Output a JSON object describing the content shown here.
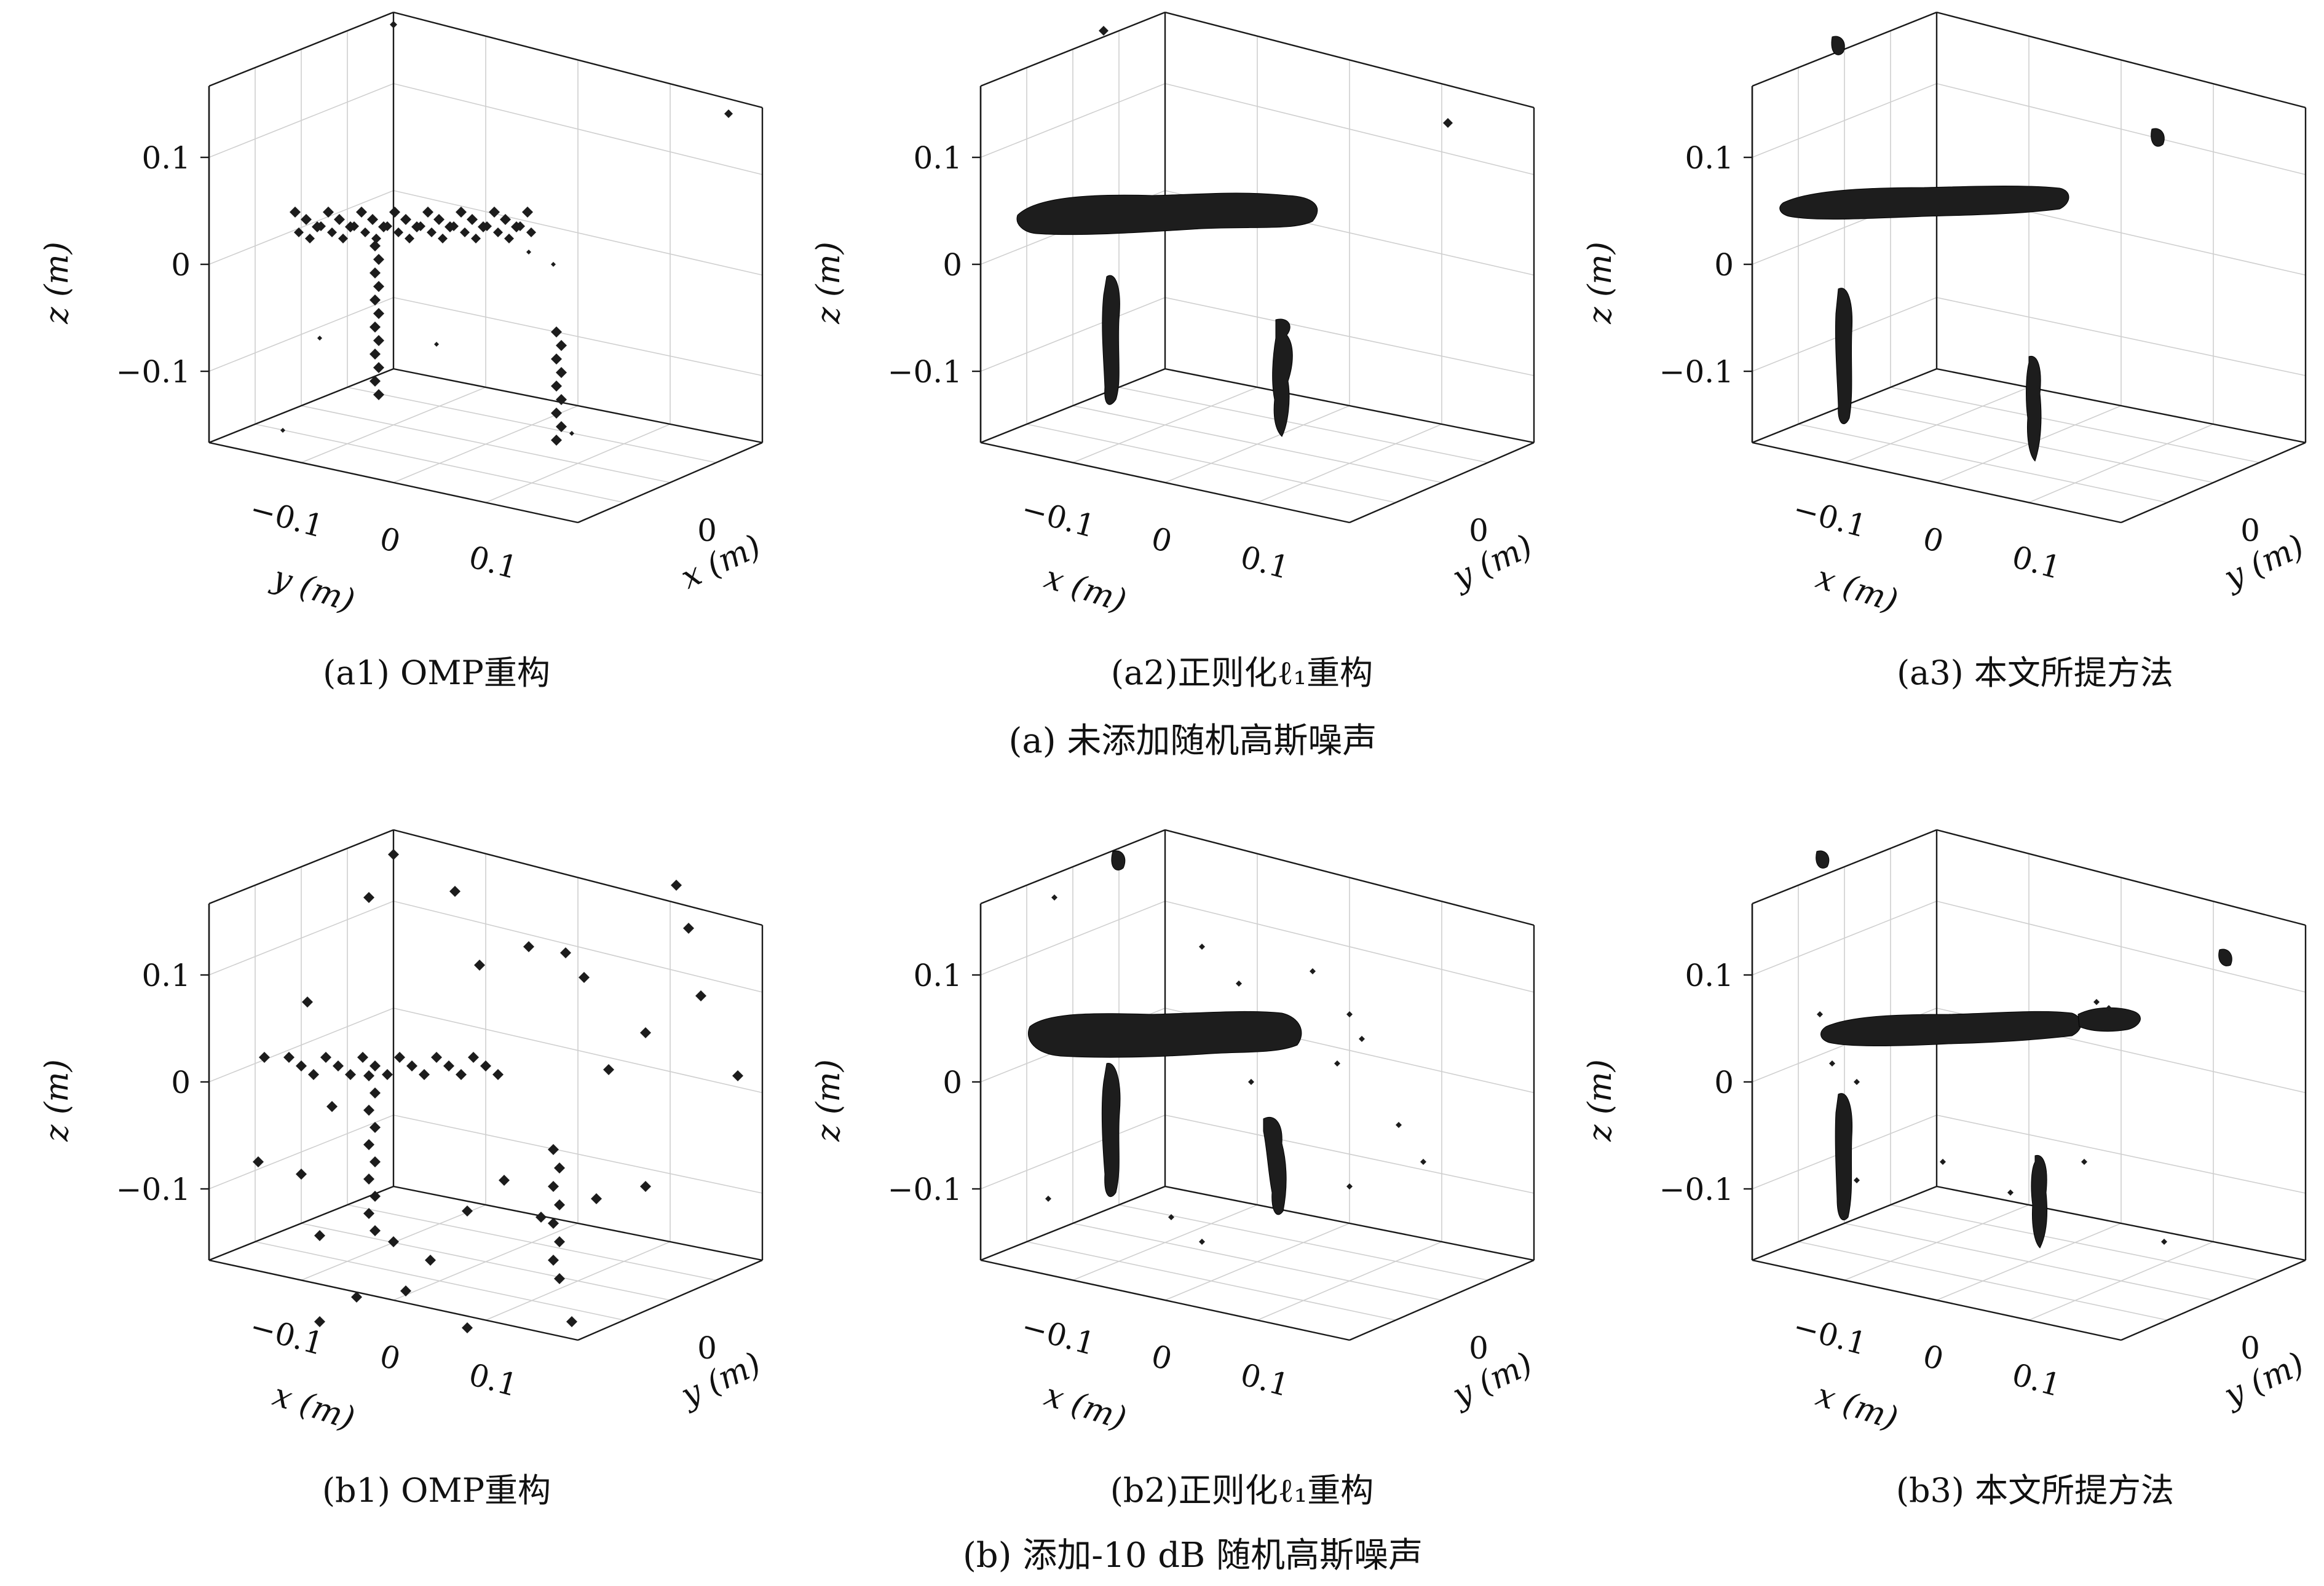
{
  "groups": [
    {
      "caption": "(a) 未添加随机高斯噪声"
    },
    {
      "caption": "(b) 添加-10 dB 随机高斯噪声"
    }
  ],
  "panels": [
    {
      "caption": "(a1) OMP重构",
      "style": "scatter",
      "z_ticks": [
        "0.1",
        "0",
        "−0.1"
      ],
      "h1_ticks": [
        "−0.1",
        "0",
        "0.1"
      ],
      "h2_ticks": [
        "0"
      ],
      "h1_label": "y (m)",
      "h2_label": "x (m)",
      "z_label": "z (m)"
    },
    {
      "caption": "(a2)正则化ℓ₁重构",
      "style": "isosurface",
      "z_ticks": [
        "0.1",
        "0",
        "−0.1"
      ],
      "h1_ticks": [
        "−0.1",
        "0",
        "0.1"
      ],
      "h2_ticks": [
        "0"
      ],
      "h1_label": "x (m)",
      "h2_label": "y (m)",
      "z_label": "z (m)"
    },
    {
      "caption": "(a3) 本文所提方法",
      "style": "isosurface-clean",
      "z_ticks": [
        "0.1",
        "0",
        "−0.1"
      ],
      "h1_ticks": [
        "−0.1",
        "0",
        "0.1"
      ],
      "h2_ticks": [
        "0"
      ],
      "h1_label": "x (m)",
      "h2_label": "y (m)",
      "z_label": "z (m)"
    },
    {
      "caption": "(b1) OMP重构",
      "style": "scatter-noisy",
      "z_ticks": [
        "0.1",
        "0",
        "−0.1"
      ],
      "h1_ticks": [
        "−0.1",
        "0",
        "0.1"
      ],
      "h2_ticks": [
        "0"
      ],
      "h1_label": "x (m)",
      "h2_label": "y (m)",
      "z_label": "z (m)"
    },
    {
      "caption": "(b2)正则化ℓ₁重构",
      "style": "isosurface-noisy",
      "z_ticks": [
        "0.1",
        "0",
        "−0.1"
      ],
      "h1_ticks": [
        "−0.1",
        "0",
        "0.1"
      ],
      "h2_ticks": [
        "0"
      ],
      "h1_label": "x (m)",
      "h2_label": "y (m)",
      "z_label": "z (m)"
    },
    {
      "caption": "(b3) 本文所提方法",
      "style": "isosurface-clean-noisy",
      "z_ticks": [
        "0.1",
        "0",
        "−0.1"
      ],
      "h1_ticks": [
        "−0.1",
        "0",
        "0.1"
      ],
      "h2_ticks": [
        "0"
      ],
      "h1_label": "x (m)",
      "h2_label": "y (m)",
      "z_label": "z (m)"
    }
  ],
  "chart_data": [
    {
      "type": "scatter",
      "subtype": "3d-scatter",
      "ztick_labels": [
        "0.1",
        "0",
        "−0.1"
      ],
      "xtick_labels": [
        "−0.1",
        "0",
        "0.1"
      ],
      "ytick_labels": [
        "0"
      ],
      "xlabel": "y (m)",
      "ylabel": "x (m)",
      "zlabel": "z (m)"
    },
    {
      "type": "scatter",
      "subtype": "3d-isosurface",
      "ztick_labels": [
        "0.1",
        "0",
        "−0.1"
      ],
      "xtick_labels": [
        "−0.1",
        "0",
        "0.1"
      ],
      "ytick_labels": [
        "0"
      ],
      "xlabel": "x (m)",
      "ylabel": "y (m)",
      "zlabel": "z (m)"
    },
    {
      "type": "scatter",
      "subtype": "3d-isosurface",
      "ztick_labels": [
        "0.1",
        "0",
        "−0.1"
      ],
      "xtick_labels": [
        "−0.1",
        "0",
        "0.1"
      ],
      "ytick_labels": [
        "0"
      ],
      "xlabel": "x (m)",
      "ylabel": "y (m)",
      "zlabel": "z (m)"
    },
    {
      "type": "scatter",
      "subtype": "3d-scatter",
      "ztick_labels": [
        "0.1",
        "0",
        "−0.1"
      ],
      "xtick_labels": [
        "−0.1",
        "0",
        "0.1"
      ],
      "ytick_labels": [
        "0"
      ],
      "xlabel": "x (m)",
      "ylabel": "y (m)",
      "zlabel": "z (m)"
    },
    {
      "type": "scatter",
      "subtype": "3d-isosurface",
      "ztick_labels": [
        "0.1",
        "0",
        "−0.1"
      ],
      "xtick_labels": [
        "−0.1",
        "0",
        "0.1"
      ],
      "ytick_labels": [
        "0"
      ],
      "xlabel": "x (m)",
      "ylabel": "y (m)",
      "zlabel": "z (m)"
    },
    {
      "type": "scatter",
      "subtype": "3d-isosurface",
      "ztick_labels": [
        "0.1",
        "0",
        "−0.1"
      ],
      "xtick_labels": [
        "−0.1",
        "0",
        "0.1"
      ],
      "ytick_labels": [
        "0"
      ],
      "xlabel": "x (m)",
      "ylabel": "y (m)",
      "zlabel": "z (m)"
    }
  ]
}
